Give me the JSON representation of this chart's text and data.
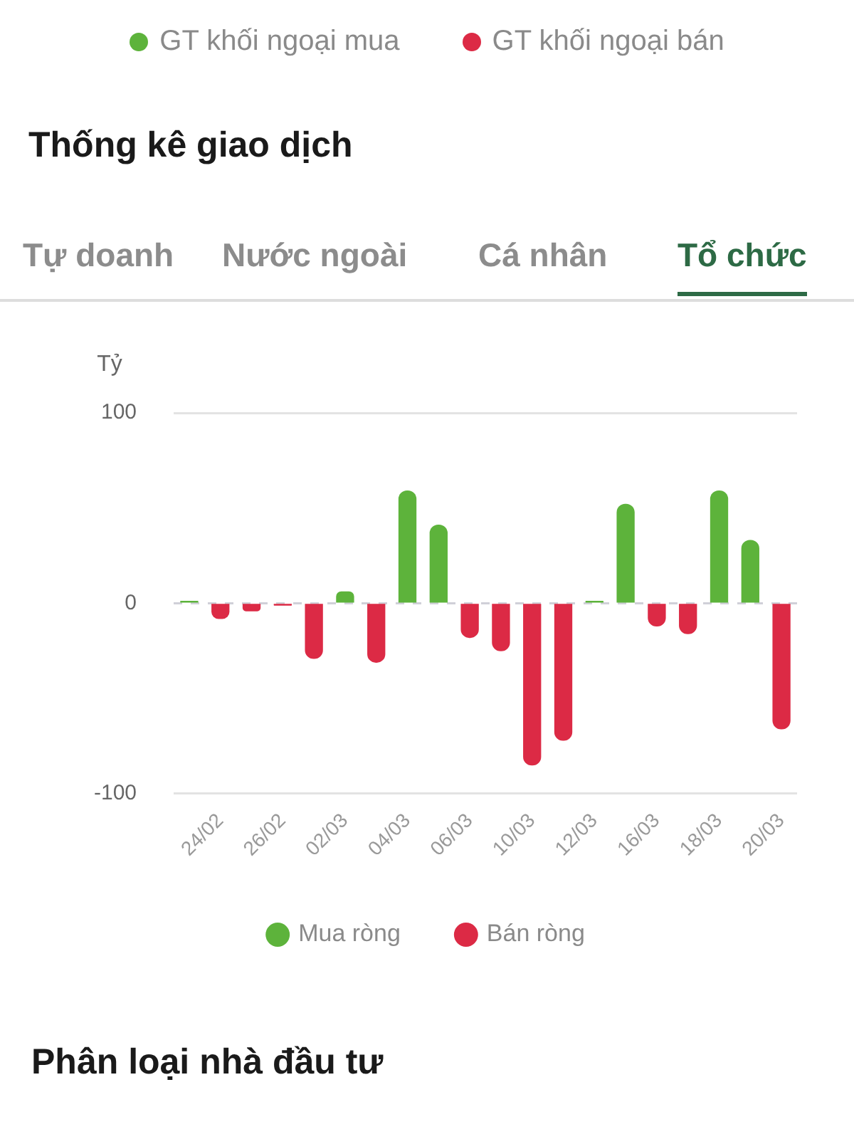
{
  "chart_data": {
    "type": "bar",
    "title": "Thống kê giao dịch",
    "ylabel": "Tỷ",
    "annotations": [
      "GT khối ngoại mua",
      "GT khối ngoại bán",
      "Tự doanh",
      "Nước ngoài",
      "Cá nhân",
      "Tổ chức",
      "Phân loại nhà đầu tư"
    ],
    "categories": [
      null,
      "24/02",
      null,
      "26/02",
      null,
      "02/03",
      null,
      "04/03",
      null,
      "06/03",
      null,
      "10/03",
      null,
      "12/03",
      null,
      "16/03",
      null,
      "18/03",
      null,
      "20/03"
    ],
    "stacked": true,
    "series": [
      {
        "name": "Mua ròng",
        "color": "#5db33b",
        "values": [
          1,
          null,
          null,
          null,
          null,
          6,
          null,
          59,
          41,
          null,
          null,
          null,
          null,
          1,
          52,
          null,
          null,
          59,
          33,
          null
        ]
      },
      {
        "name": "Bán ròng",
        "color": "#dc2a45",
        "values": [
          null,
          -8,
          -4,
          -1,
          -29,
          null,
          -31,
          null,
          null,
          -18,
          -25,
          -85,
          -72,
          null,
          null,
          -12,
          -16,
          null,
          null,
          -66
        ]
      }
    ],
    "ylim": [
      -100,
      100
    ],
    "yticks": [
      -100,
      0,
      100
    ],
    "grid": "y",
    "legend": "bottom"
  }
}
